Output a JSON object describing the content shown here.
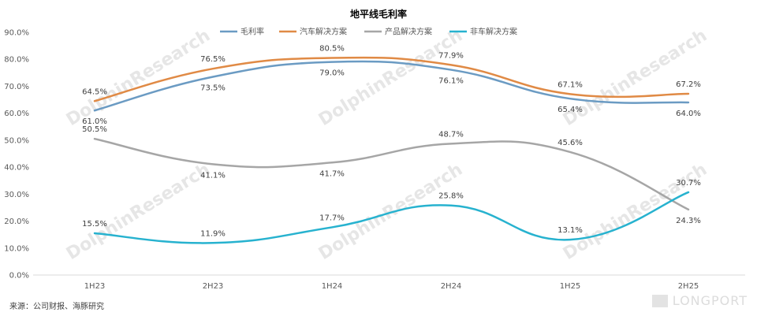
{
  "chart_data": {
    "type": "line",
    "title": "地平线毛利率",
    "categories": [
      "1H23",
      "2H23",
      "1H24",
      "2H24",
      "1H25",
      "2H25"
    ],
    "y_ticks": [
      "0.0%",
      "10.0%",
      "20.0%",
      "30.0%",
      "40.0%",
      "50.0%",
      "60.0%",
      "70.0%",
      "80.0%",
      "90.0%"
    ],
    "ylim": [
      0,
      90
    ],
    "grid": false,
    "legend_position": "top",
    "series": [
      {
        "name": "毛利率",
        "color": "#6b9bc3",
        "values": [
          61.0,
          73.5,
          79.0,
          76.1,
          65.4,
          64.0
        ],
        "labels": [
          "61.0%",
          "73.5%",
          "79.0%",
          "76.1%",
          "65.4%",
          "64.0%"
        ]
      },
      {
        "name": "汽车解决方案",
        "color": "#e08a45",
        "values": [
          64.5,
          76.5,
          80.5,
          77.9,
          67.1,
          67.2
        ],
        "labels": [
          "64.5%",
          "76.5%",
          "80.5%",
          "77.9%",
          "67.1%",
          "67.2%"
        ]
      },
      {
        "name": "产品解决方案",
        "color": "#a6a6a6",
        "values": [
          50.5,
          41.1,
          41.7,
          48.7,
          45.6,
          24.3
        ],
        "labels": [
          "50.5%",
          "41.1%",
          "41.7%",
          "48.7%",
          "45.6%",
          "24.3%"
        ]
      },
      {
        "name": "非车解决方案",
        "color": "#27b2cf",
        "values": [
          15.5,
          11.9,
          17.7,
          25.8,
          13.1,
          30.7
        ],
        "labels": [
          "15.5%",
          "11.9%",
          "17.7%",
          "25.8%",
          "13.1%",
          "30.7%"
        ]
      }
    ]
  },
  "footer": {
    "source": "来源：公司财报、海豚研究",
    "brand": "LONGPORT"
  },
  "watermark": "DolphinResearch"
}
